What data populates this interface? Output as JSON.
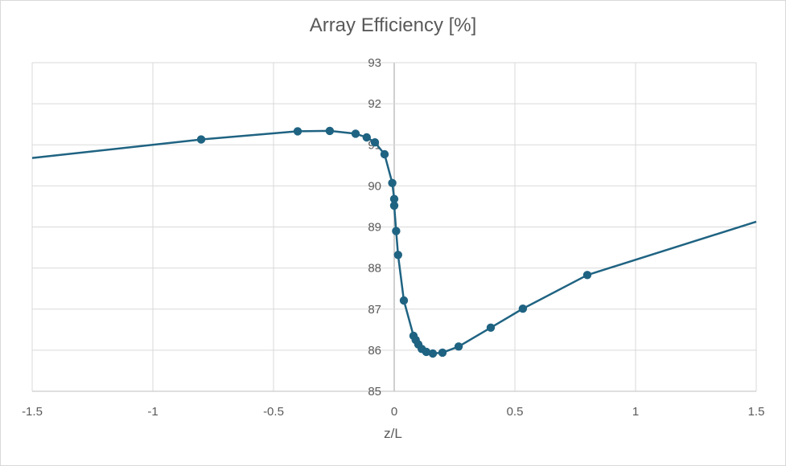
{
  "chart_data": {
    "type": "scatter",
    "title": "Array Efficiency [%]",
    "xlabel": "z/L",
    "ylabel": "",
    "xlim": [
      -1.5,
      1.5
    ],
    "ylim": [
      85,
      93
    ],
    "x_ticks": [
      -1.5,
      -1,
      -0.5,
      0,
      0.5,
      1,
      1.5
    ],
    "x_tick_labels": [
      "-1.5",
      "-1",
      "-0.5",
      "0",
      "0.5",
      "1",
      "1.5"
    ],
    "y_ticks": [
      85,
      86,
      87,
      88,
      89,
      90,
      91,
      92,
      93
    ],
    "y_tick_labels": [
      "85",
      "86",
      "87",
      "88",
      "89",
      "90",
      "91",
      "92",
      "93"
    ],
    "grid": true,
    "legend": "none",
    "series": [
      {
        "color": "#1f6382",
        "line_only_ends": [
          {
            "x": -1.5,
            "y": 90.68
          },
          {
            "x": 1.5,
            "y": 89.13
          }
        ],
        "points": [
          {
            "x": -0.8,
            "y": 91.13
          },
          {
            "x": -0.4,
            "y": 91.33
          },
          {
            "x": -0.267,
            "y": 91.34
          },
          {
            "x": -0.16,
            "y": 91.27
          },
          {
            "x": -0.114,
            "y": 91.18
          },
          {
            "x": -0.08,
            "y": 91.06
          },
          {
            "x": -0.04,
            "y": 90.77
          },
          {
            "x": -0.008,
            "y": 90.07
          },
          {
            "x": 0.0,
            "y": 89.68
          },
          {
            "x": 0.0,
            "y": 89.52
          },
          {
            "x": 0.008,
            "y": 88.9
          },
          {
            "x": 0.016,
            "y": 88.32
          },
          {
            "x": 0.04,
            "y": 87.21
          },
          {
            "x": 0.08,
            "y": 86.35
          },
          {
            "x": 0.089,
            "y": 86.25
          },
          {
            "x": 0.1,
            "y": 86.14
          },
          {
            "x": 0.114,
            "y": 86.03
          },
          {
            "x": 0.133,
            "y": 85.96
          },
          {
            "x": 0.16,
            "y": 85.92
          },
          {
            "x": 0.2,
            "y": 85.94
          },
          {
            "x": 0.267,
            "y": 86.09
          },
          {
            "x": 0.4,
            "y": 86.55
          },
          {
            "x": 0.533,
            "y": 87.01
          },
          {
            "x": 0.8,
            "y": 87.83
          }
        ]
      }
    ]
  }
}
